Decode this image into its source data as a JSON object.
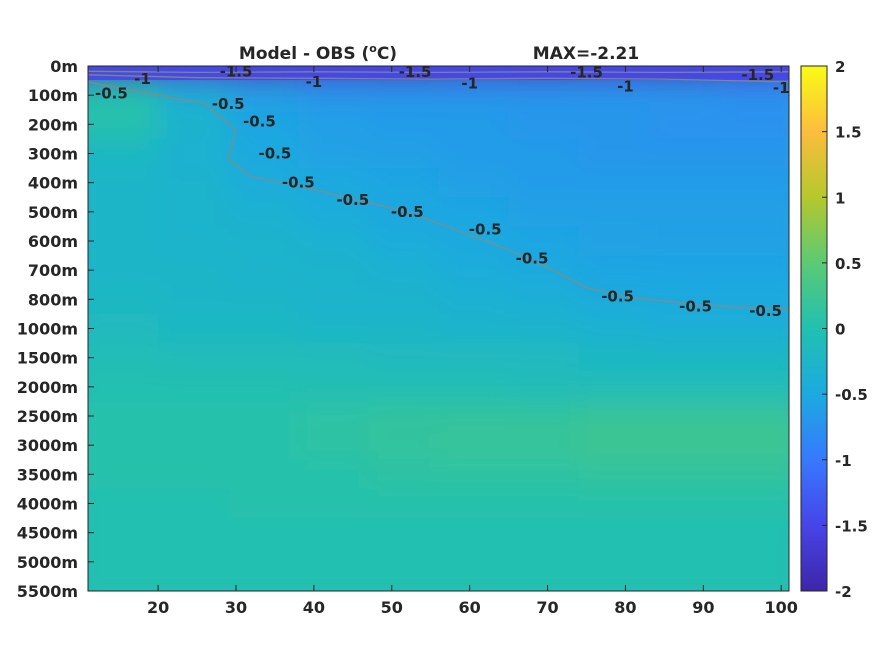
{
  "chart_data": {
    "type": "heatmap",
    "title": "Model - OBS (°C)",
    "title_parts": {
      "prefix": "Model - OBS (",
      "superscript": "o",
      "suffix": "C)"
    },
    "annotation": "MAX=-2.21",
    "xlabel": "",
    "ylabel": "",
    "x_range": [
      11,
      101
    ],
    "x_ticks": [
      20,
      30,
      40,
      50,
      60,
      70,
      80,
      90,
      100
    ],
    "y_ticks": [
      "0m",
      "100m",
      "200m",
      "300m",
      "400m",
      "500m",
      "600m",
      "700m",
      "800m",
      "1000m",
      "1500m",
      "2000m",
      "2500m",
      "3000m",
      "3500m",
      "4000m",
      "4500m",
      "5000m",
      "5500m"
    ],
    "colorbar": {
      "range": [
        -2,
        2
      ],
      "ticks": [
        "2",
        "1.5",
        "1",
        "0.5",
        "0",
        "-0.5",
        "-1",
        "-1.5",
        "-2"
      ],
      "colormap": "parula",
      "colors": [
        "#3e26a8",
        "#4744e8",
        "#3779fe",
        "#1caadf",
        "#21c0b0",
        "#5bca74",
        "#b5c82c",
        "#fcbd3d",
        "#f9fb15"
      ]
    },
    "field_rows": [
      {
        "level": "0m",
        "values": [
          -1.8,
          -1.7,
          -1.8,
          -1.7,
          -1.8,
          -1.7,
          -1.8,
          -1.7,
          -1.8,
          -1.7
        ]
      },
      {
        "level": "100m",
        "values": [
          0.0,
          -0.4,
          -0.6,
          -0.7,
          -0.7,
          -0.7,
          -0.7,
          -0.7,
          -0.7,
          -0.75
        ]
      },
      {
        "level": "200m",
        "values": [
          0.05,
          -0.3,
          -0.55,
          -0.6,
          -0.65,
          -0.65,
          -0.7,
          -0.7,
          -0.75,
          -0.75
        ]
      },
      {
        "level": "300m",
        "values": [
          -0.2,
          -0.35,
          -0.5,
          -0.6,
          -0.6,
          -0.65,
          -0.65,
          -0.7,
          -0.7,
          -0.7
        ]
      },
      {
        "level": "400m",
        "values": [
          -0.25,
          -0.3,
          -0.45,
          -0.5,
          -0.55,
          -0.6,
          -0.65,
          -0.65,
          -0.65,
          -0.65
        ]
      },
      {
        "level": "500m",
        "values": [
          -0.25,
          -0.3,
          -0.35,
          -0.45,
          -0.52,
          -0.55,
          -0.6,
          -0.6,
          -0.6,
          -0.6
        ]
      },
      {
        "level": "600m",
        "values": [
          -0.25,
          -0.3,
          -0.3,
          -0.35,
          -0.45,
          -0.5,
          -0.55,
          -0.58,
          -0.6,
          -0.6
        ]
      },
      {
        "level": "700m",
        "values": [
          -0.25,
          -0.25,
          -0.3,
          -0.3,
          -0.35,
          -0.45,
          -0.5,
          -0.55,
          -0.55,
          -0.55
        ]
      },
      {
        "level": "800m",
        "values": [
          -0.2,
          -0.25,
          -0.25,
          -0.3,
          -0.3,
          -0.35,
          -0.4,
          -0.48,
          -0.5,
          -0.5
        ]
      },
      {
        "level": "1000m",
        "values": [
          -0.15,
          -0.2,
          -0.2,
          -0.25,
          -0.25,
          -0.3,
          -0.3,
          -0.35,
          -0.4,
          -0.4
        ]
      },
      {
        "level": "1500m",
        "values": [
          -0.05,
          -0.1,
          -0.1,
          -0.1,
          -0.15,
          -0.15,
          -0.15,
          -0.2,
          -0.2,
          -0.2
        ]
      },
      {
        "level": "2000m",
        "values": [
          0.0,
          0.0,
          0.0,
          -0.05,
          -0.05,
          -0.05,
          -0.1,
          -0.1,
          -0.1,
          -0.1
        ]
      },
      {
        "level": "2500m",
        "values": [
          0.05,
          0.05,
          0.05,
          0.1,
          0.15,
          0.15,
          0.15,
          0.2,
          0.2,
          0.2
        ]
      },
      {
        "level": "3000m",
        "values": [
          0.05,
          0.05,
          0.05,
          0.1,
          0.15,
          0.2,
          0.2,
          0.25,
          0.25,
          0.25
        ]
      },
      {
        "level": "3500m",
        "values": [
          0.05,
          0.05,
          0.05,
          0.05,
          0.1,
          0.1,
          0.1,
          0.15,
          0.15,
          0.15
        ]
      },
      {
        "level": "4000m",
        "values": [
          0.0,
          0.0,
          0.05,
          0.05,
          0.05,
          0.05,
          0.05,
          0.05,
          0.05,
          0.05
        ]
      },
      {
        "level": "4500m",
        "values": [
          0.0,
          0.0,
          0.0,
          0.0,
          0.0,
          0.0,
          0.0,
          0.0,
          0.0,
          0.0
        ]
      },
      {
        "level": "5000m",
        "values": [
          0.0,
          0.0,
          0.0,
          0.0,
          0.0,
          0.0,
          0.0,
          0.0,
          0.0,
          0.0
        ]
      },
      {
        "level": "5500m",
        "values": [
          0.0,
          0.0,
          0.0,
          0.0,
          0.0,
          0.0,
          0.0,
          0.0,
          0.0,
          0.0
        ]
      }
    ],
    "contours": [
      {
        "level": -1.5,
        "label": "-1.5",
        "points": [
          [
            11,
            0.18
          ],
          [
            25,
            0.22
          ],
          [
            40,
            0.2
          ],
          [
            55,
            0.22
          ],
          [
            70,
            0.2
          ],
          [
            85,
            0.22
          ],
          [
            101,
            0.2
          ]
        ],
        "labels_at": [
          [
            30,
            0.18
          ],
          [
            53,
            0.2
          ],
          [
            75,
            0.22
          ],
          [
            97,
            0.3
          ]
        ]
      },
      {
        "level": -1,
        "label": "-1",
        "points": [
          [
            11,
            0.3
          ],
          [
            25,
            0.4
          ],
          [
            40,
            0.42
          ],
          [
            55,
            0.45
          ],
          [
            70,
            0.42
          ],
          [
            85,
            0.45
          ],
          [
            101,
            0.55
          ]
        ],
        "labels_at": [
          [
            18,
            0.45
          ],
          [
            40,
            0.55
          ],
          [
            60,
            0.6
          ],
          [
            80,
            0.7
          ],
          [
            100,
            0.75
          ]
        ]
      },
      {
        "level": -0.5,
        "label": "-0.5",
        "points": [
          [
            11,
            0.55
          ],
          [
            20,
            1.0
          ],
          [
            26,
            1.3
          ],
          [
            30,
            2.2
          ],
          [
            29,
            3.2
          ],
          [
            32,
            3.8
          ],
          [
            38,
            4.1
          ],
          [
            44,
            4.5
          ],
          [
            52,
            5.0
          ],
          [
            58,
            5.6
          ],
          [
            65,
            6.3
          ],
          [
            70,
            6.9
          ],
          [
            75,
            7.6
          ],
          [
            81,
            7.95
          ],
          [
            90,
            8.2
          ],
          [
            101,
            8.35
          ]
        ],
        "labels_at": [
          [
            14,
            0.95
          ],
          [
            29,
            1.3
          ],
          [
            33,
            1.9
          ],
          [
            35,
            3.0
          ],
          [
            38,
            4.0
          ],
          [
            45,
            4.6
          ],
          [
            52,
            5.0
          ],
          [
            62,
            5.6
          ],
          [
            68,
            6.6
          ],
          [
            79,
            7.9
          ],
          [
            89,
            8.25
          ],
          [
            98,
            8.4
          ]
        ]
      }
    ]
  }
}
